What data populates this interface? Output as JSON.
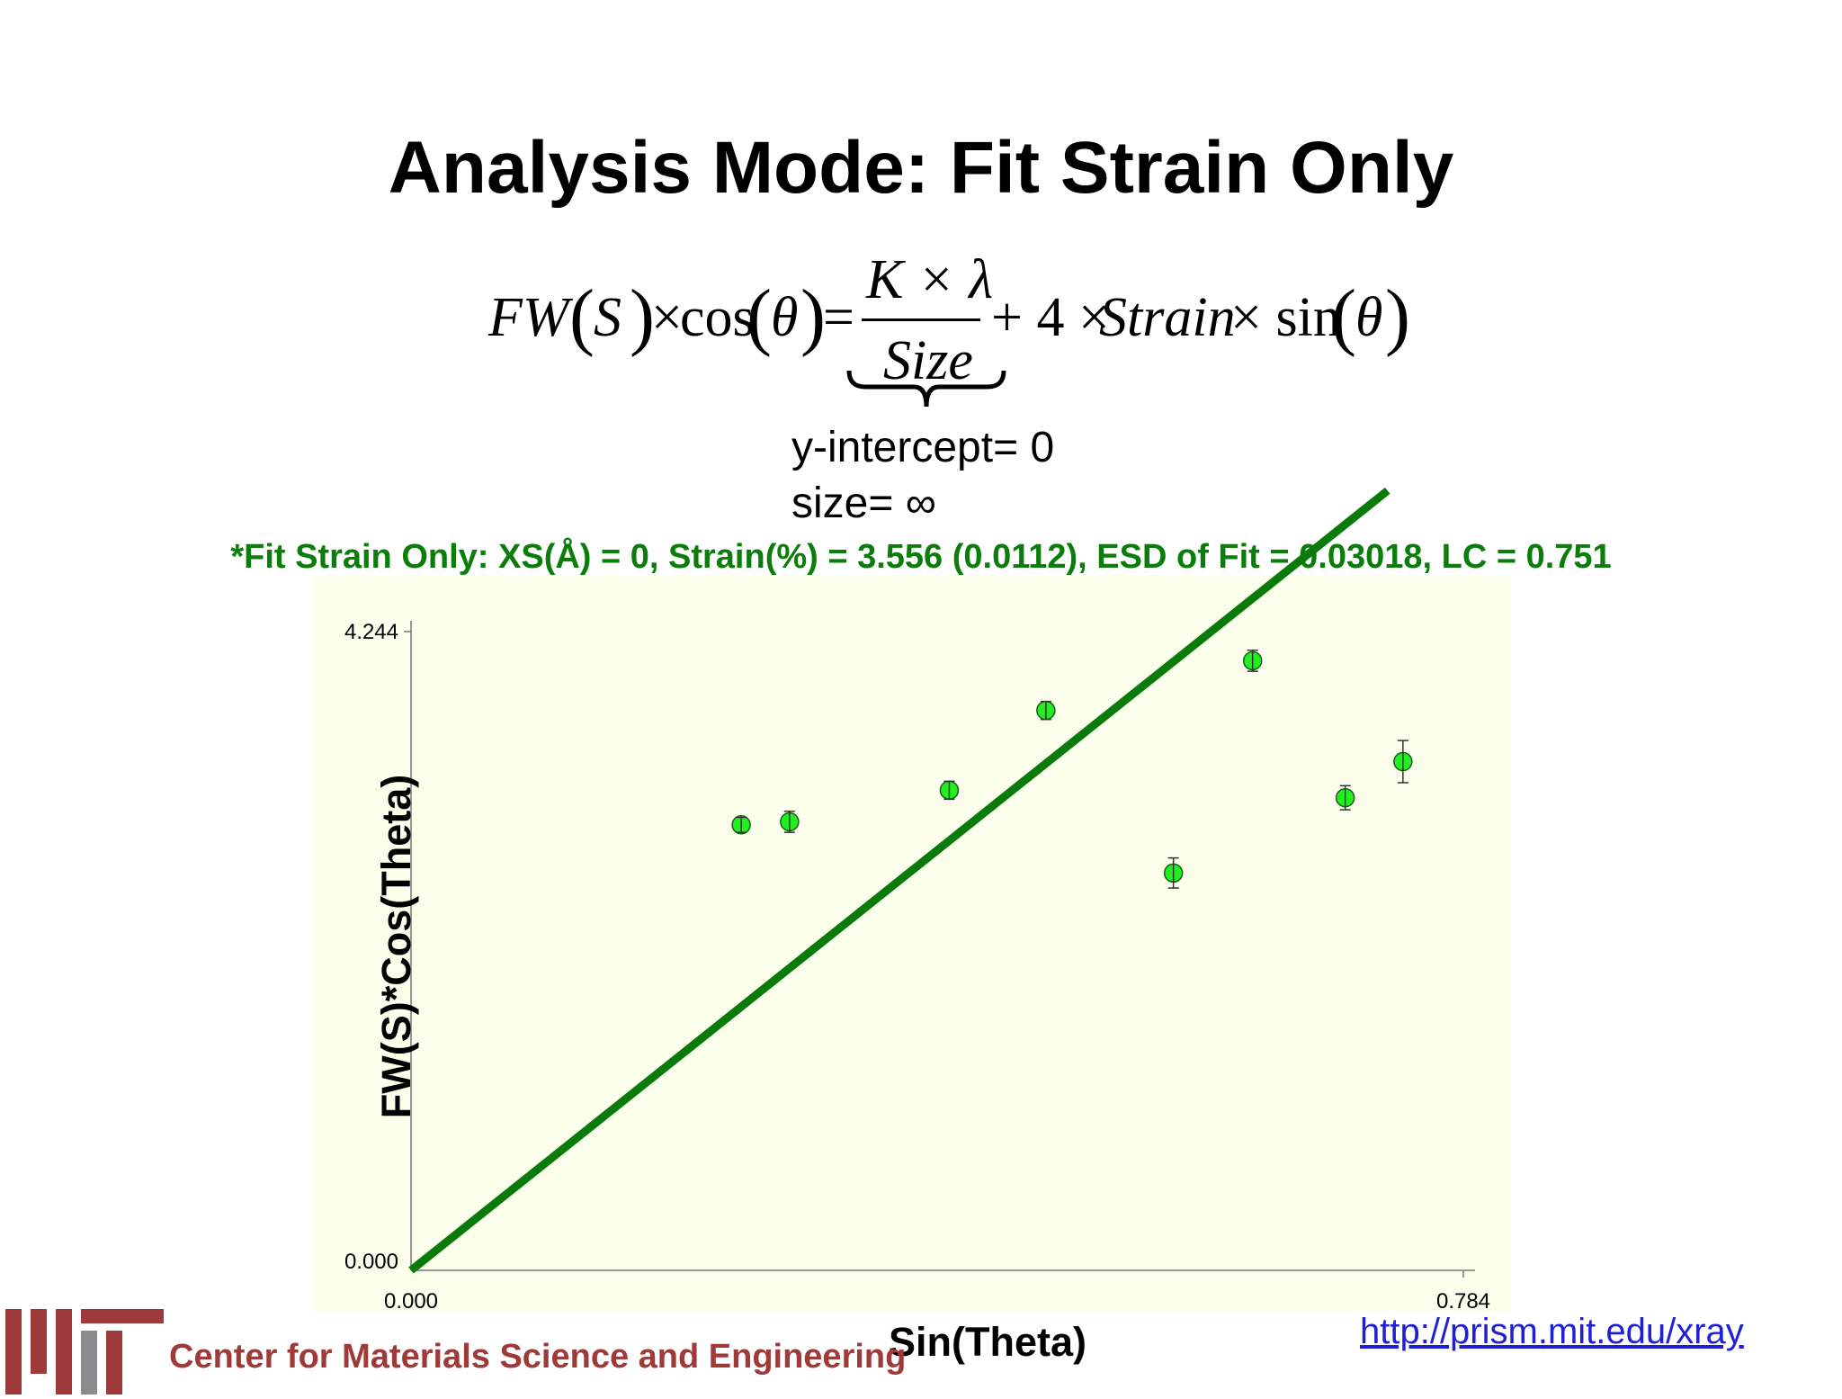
{
  "slide": {
    "title": "Analysis Mode: Fit Strain Only",
    "equation": {
      "lhs_fw": "FW",
      "lhs_s": "S",
      "times1": "×",
      "cos": "cos",
      "theta": "θ",
      "equals": "=",
      "numerator": "K × λ",
      "denominator": "Size",
      "plus4": "+ 4 ×",
      "strain": "Strain",
      "times_sin": "× sin",
      "lparen": "(",
      "rparen": ")"
    },
    "intercept_label": "y-intercept= 0",
    "size_label": "size= ∞",
    "fit_summary": "*Fit Strain Only: XS(Å) = 0, Strain(%) = 3.556 (0.0112), ESD of Fit = 0.03018, LC = 0.751"
  },
  "colors": {
    "accent_green": "#0a7d0a",
    "fit_line": "#0a7a0a",
    "point_fill": "#22ee22",
    "plot_bg": "#fcfeec",
    "mit_red": "#9e3a3a",
    "mit_gray": "#8a8b8c",
    "link": "#1f1fd6"
  },
  "chart_data": {
    "type": "scatter",
    "xlabel": "Sin(Theta)",
    "ylabel": "FW(S)*Cos(Theta)",
    "xlim": [
      0,
      0.784
    ],
    "ylim": [
      0,
      4.244
    ],
    "x_ticks": [
      "0.000",
      "0.784"
    ],
    "y_ticks": [
      "0.000",
      "4.244"
    ],
    "points": [
      {
        "x": 0.246,
        "y": 2.96,
        "err": 0.05
      },
      {
        "x": 0.282,
        "y": 2.98,
        "err": 0.07
      },
      {
        "x": 0.401,
        "y": 3.19,
        "err": 0.06
      },
      {
        "x": 0.473,
        "y": 3.72,
        "err": 0.06
      },
      {
        "x": 0.568,
        "y": 2.64,
        "err": 0.1
      },
      {
        "x": 0.627,
        "y": 4.05,
        "err": 0.07
      },
      {
        "x": 0.696,
        "y": 3.14,
        "err": 0.08
      },
      {
        "x": 0.739,
        "y": 3.38,
        "err": 0.14
      }
    ],
    "fit_line": {
      "slope": 7.12,
      "intercept": 0
    },
    "grid": false
  },
  "footer": {
    "center_name": "Center for Materials Science and Engineering",
    "url": "http://prism.mit.edu/xray"
  }
}
